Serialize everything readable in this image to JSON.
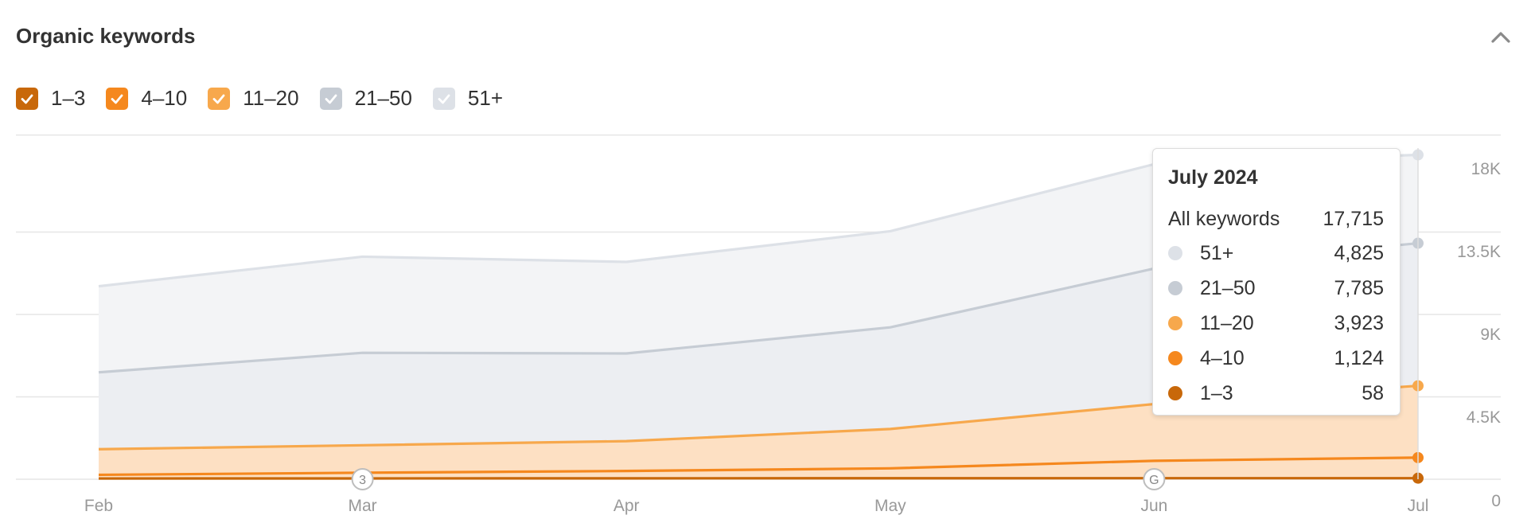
{
  "header": {
    "title": "Organic keywords"
  },
  "legend": [
    {
      "label": "1–3",
      "color": "#c8680a"
    },
    {
      "label": "4–10",
      "color": "#f5881e"
    },
    {
      "label": "11–20",
      "color": "#f7a84c"
    },
    {
      "label": "21–50",
      "color": "#c6ccd4"
    },
    {
      "label": "51+",
      "color": "#dde1e7"
    }
  ],
  "tooltip": {
    "title": "July 2024",
    "total_label": "All keywords",
    "total_value": "17,715",
    "rows": [
      {
        "label": "51+",
        "value": "4,825",
        "color": "#dde1e7"
      },
      {
        "label": "21–50",
        "value": "7,785",
        "color": "#c6ccd4"
      },
      {
        "label": "11–20",
        "value": "3,923",
        "color": "#f7a84c"
      },
      {
        "label": "4–10",
        "value": "1,124",
        "color": "#f5881e"
      },
      {
        "label": "1–3",
        "value": "58",
        "color": "#c8680a"
      }
    ]
  },
  "chart_data": {
    "type": "area",
    "stacked": true,
    "categories": [
      "Feb",
      "Mar",
      "Apr",
      "May",
      "Jun",
      "Jul"
    ],
    "ylim": [
      0,
      18000
    ],
    "yticks": [
      "18K",
      "13.5K",
      "9K",
      "4.5K",
      "0"
    ],
    "ytick_values": [
      18000,
      13500,
      9000,
      4500,
      0
    ],
    "grid": true,
    "y_axis_side": "right",
    "series": [
      {
        "name": "1–3",
        "color": "#c8680a",
        "values": [
          40,
          45,
          50,
          55,
          57,
          58
        ]
      },
      {
        "name": "4–10",
        "color": "#f5881e",
        "values": [
          200,
          310,
          400,
          540,
          950,
          1124
        ]
      },
      {
        "name": "11–20",
        "color": "#f7a84c",
        "values": [
          1400,
          1500,
          1630,
          2150,
          3100,
          3923
        ]
      },
      {
        "name": "21–50",
        "color": "#c6ccd4",
        "values": [
          4200,
          5050,
          4790,
          5550,
          7400,
          7785
        ]
      },
      {
        "name": "51+",
        "color": "#dde1e7",
        "values": [
          4700,
          5250,
          5000,
          5250,
          5700,
          4825
        ]
      }
    ],
    "annotations": [
      {
        "x": "Mar",
        "label": "3"
      },
      {
        "x": "Jun",
        "label": "G"
      }
    ]
  }
}
